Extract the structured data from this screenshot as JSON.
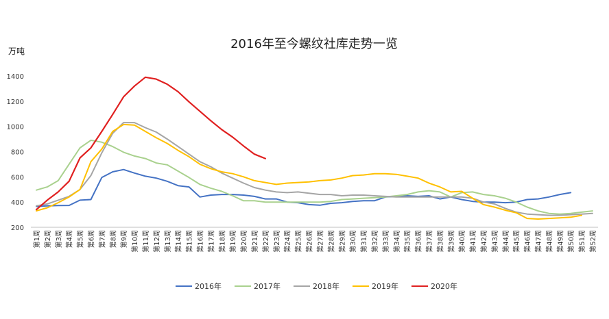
{
  "chart_data": {
    "type": "line",
    "title": "2016年至今螺纹社库走势一览",
    "ylabel": "万吨",
    "xlabel": "",
    "ylim": [
      200,
      1400
    ],
    "yticks": [
      200,
      400,
      600,
      800,
      1000,
      1200,
      1400
    ],
    "grid": false,
    "legend_position": "bottom",
    "categories": [
      "第1周",
      "第2周",
      "第3周",
      "第4周",
      "第5周",
      "第6周",
      "第7周",
      "第8周",
      "第9周",
      "第10周",
      "第11周",
      "第12周",
      "第13周",
      "第14周",
      "第15周",
      "第16周",
      "第17周",
      "第18周",
      "第19周",
      "第20周",
      "第21周",
      "第22周",
      "第23周",
      "第24周",
      "第25周",
      "第26周",
      "第27周",
      "第28周",
      "第29周",
      "第30周",
      "第31周",
      "第32周",
      "第33周",
      "第34周",
      "第35周",
      "第36周",
      "第37周",
      "第38周",
      "第39周",
      "第40周",
      "第41周",
      "第42周",
      "第43周",
      "第44周",
      "第45周",
      "第46周",
      "第47周",
      "第48周",
      "第49周",
      "第50周",
      "第51周",
      "第52周"
    ],
    "series": [
      {
        "name": "2016年",
        "color": "#4472c4",
        "values": [
          365,
          370,
          372,
          373,
          415,
          420,
          595,
          640,
          658,
          630,
          605,
          590,
          565,
          530,
          520,
          440,
          455,
          460,
          460,
          455,
          445,
          425,
          425,
          400,
          395,
          380,
          375,
          390,
          395,
          405,
          410,
          410,
          440,
          445,
          450,
          445,
          450,
          425,
          440,
          420,
          405,
          400,
          400,
          395,
          400,
          420,
          425,
          440,
          460,
          475,
          null,
          null
        ]
      },
      {
        "name": "2017年",
        "color": "#a9d18e",
        "values": [
          495,
          520,
          570,
          700,
          830,
          890,
          875,
          840,
          795,
          765,
          745,
          710,
          695,
          645,
          595,
          540,
          510,
          485,
          450,
          410,
          410,
          400,
          400,
          400,
          400,
          400,
          400,
          405,
          420,
          425,
          430,
          435,
          440,
          450,
          460,
          480,
          490,
          480,
          440,
          475,
          480,
          460,
          450,
          430,
          400,
          360,
          330,
          310,
          305,
          310,
          320,
          330
        ]
      },
      {
        "name": "2018年",
        "color": "#a5a5a5",
        "values": [
          370,
          385,
          415,
          445,
          500,
          610,
          790,
          945,
          1030,
          1030,
          990,
          955,
          900,
          840,
          780,
          720,
          680,
          630,
          590,
          550,
          515,
          495,
          480,
          475,
          480,
          470,
          460,
          460,
          450,
          455,
          455,
          450,
          445,
          440,
          440,
          440,
          440,
          440,
          440,
          440,
          430,
          400,
          385,
          350,
          320,
          305,
          300,
          295,
          295,
          300,
          305,
          310
        ]
      },
      {
        "name": "2019年",
        "color": "#ffc000",
        "values": [
          330,
          355,
          395,
          440,
          500,
          720,
          820,
          960,
          1015,
          1010,
          960,
          910,
          865,
          810,
          760,
          700,
          665,
          640,
          625,
          600,
          570,
          555,
          540,
          550,
          555,
          560,
          570,
          575,
          590,
          610,
          615,
          625,
          625,
          620,
          605,
          590,
          550,
          520,
          480,
          485,
          430,
          380,
          360,
          335,
          315,
          270,
          265,
          270,
          275,
          280,
          295,
          null
        ]
      },
      {
        "name": "2020年",
        "color": "#e02020",
        "values": [
          340,
          415,
          480,
          565,
          750,
          830,
          960,
          1095,
          1235,
          1320,
          1390,
          1375,
          1335,
          1275,
          1195,
          1120,
          1045,
          975,
          915,
          845,
          780,
          745,
          null,
          null,
          null,
          null,
          null,
          null,
          null,
          null,
          null,
          null,
          null,
          null,
          null,
          null,
          null,
          null,
          null,
          null,
          null,
          null,
          null,
          null,
          null,
          null,
          null,
          null,
          null,
          null,
          null,
          null
        ]
      }
    ]
  }
}
